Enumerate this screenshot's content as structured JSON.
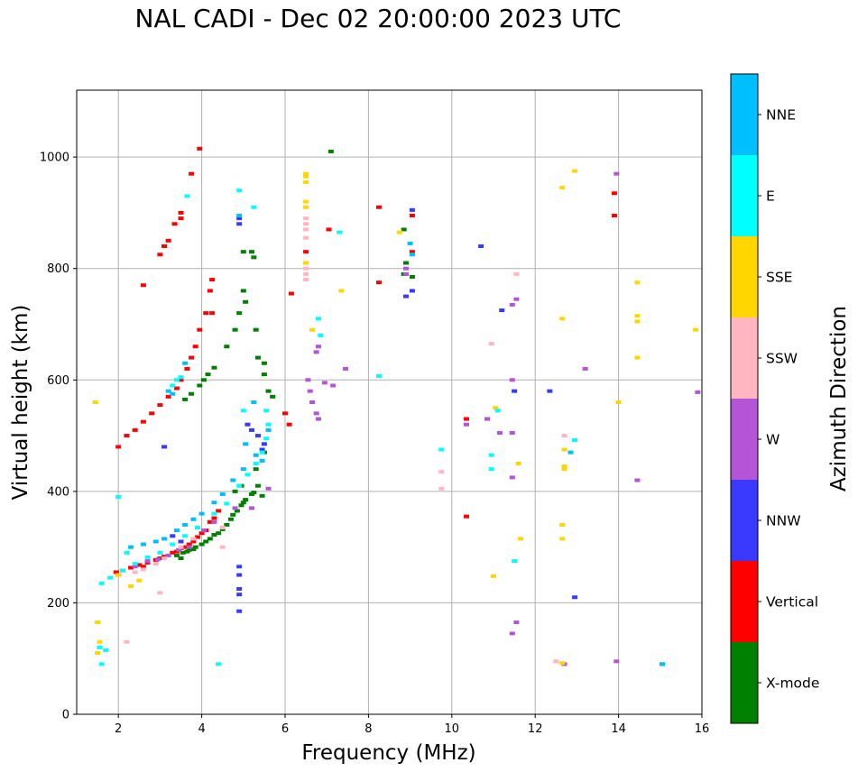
{
  "chart_data": {
    "type": "scatter",
    "title": "NAL CADI - Dec 02 20:00:00 2023 UTC",
    "xlabel": "Frequency (MHz)",
    "ylabel": "Virtual height (km)",
    "xlim": [
      1,
      16
    ],
    "ylim": [
      0,
      1120
    ],
    "xticks": [
      2,
      4,
      6,
      8,
      10,
      12,
      14,
      16
    ],
    "yticks": [
      0,
      200,
      400,
      600,
      800,
      1000
    ],
    "grid": true,
    "colorbar": {
      "label": "Azimuth Direction",
      "categories": [
        {
          "name": "X-mode",
          "color": "#008000"
        },
        {
          "name": "Vertical",
          "color": "#ff0000"
        },
        {
          "name": "NNW",
          "color": "#3a3aff"
        },
        {
          "name": "W",
          "color": "#b455d8"
        },
        {
          "name": "SSW",
          "color": "#ffb6c1"
        },
        {
          "name": "SSE",
          "color": "#ffd700"
        },
        {
          "name": "E",
          "color": "#00ffff"
        },
        {
          "name": "NNE",
          "color": "#00bfff"
        }
      ]
    },
    "series": [
      {
        "name": "X-mode",
        "points": [
          [
            3.4,
            285
          ],
          [
            3.55,
            290
          ],
          [
            3.7,
            295
          ],
          [
            3.85,
            300
          ],
          [
            4.0,
            305
          ],
          [
            4.2,
            315
          ],
          [
            4.4,
            325
          ],
          [
            4.6,
            340
          ],
          [
            4.7,
            350
          ],
          [
            4.85,
            365
          ],
          [
            4.95,
            375
          ],
          [
            5.05,
            385
          ],
          [
            5.2,
            395
          ],
          [
            5.35,
            410
          ],
          [
            3.5,
            280
          ],
          [
            3.8,
            296
          ],
          [
            4.1,
            310
          ],
          [
            4.5,
            332
          ],
          [
            4.75,
            358
          ],
          [
            5.0,
            380
          ],
          [
            5.25,
            398
          ],
          [
            5.45,
            392
          ],
          [
            4.3,
            322
          ],
          [
            3.65,
            292
          ],
          [
            4.05,
            600
          ],
          [
            4.15,
            610
          ],
          [
            3.95,
            590
          ],
          [
            3.75,
            575
          ],
          [
            3.6,
            565
          ],
          [
            4.3,
            622
          ],
          [
            4.6,
            660
          ],
          [
            4.8,
            690
          ],
          [
            4.9,
            720
          ],
          [
            5.05,
            740
          ],
          [
            5.0,
            830
          ],
          [
            5.2,
            830
          ],
          [
            5.25,
            820
          ],
          [
            5.0,
            760
          ],
          [
            5.3,
            690
          ],
          [
            5.35,
            640
          ],
          [
            5.5,
            630
          ],
          [
            5.5,
            610
          ],
          [
            5.6,
            580
          ],
          [
            5.7,
            570
          ],
          [
            8.85,
            870
          ],
          [
            8.9,
            810
          ],
          [
            8.85,
            790
          ],
          [
            9.05,
            785
          ],
          [
            7.1,
            1010
          ],
          [
            5.5,
            470
          ],
          [
            5.3,
            440
          ],
          [
            4.95,
            410
          ],
          [
            4.8,
            400
          ]
        ]
      },
      {
        "name": "Vertical",
        "points": [
          [
            1.95,
            255
          ],
          [
            2.1,
            258
          ],
          [
            2.3,
            263
          ],
          [
            2.5,
            268
          ],
          [
            2.7,
            272
          ],
          [
            2.9,
            277
          ],
          [
            3.1,
            283
          ],
          [
            3.3,
            290
          ],
          [
            3.5,
            298
          ],
          [
            3.7,
            305
          ],
          [
            3.9,
            318
          ],
          [
            4.0,
            325
          ],
          [
            4.1,
            330
          ],
          [
            4.2,
            345
          ],
          [
            2.0,
            250
          ],
          [
            2.6,
            265
          ],
          [
            3.0,
            280
          ],
          [
            3.4,
            292
          ],
          [
            3.8,
            310
          ],
          [
            4.3,
            352
          ],
          [
            4.4,
            365
          ],
          [
            3.6,
            300
          ],
          [
            2.0,
            480
          ],
          [
            2.2,
            500
          ],
          [
            2.4,
            510
          ],
          [
            2.6,
            525
          ],
          [
            2.8,
            540
          ],
          [
            3.0,
            555
          ],
          [
            3.2,
            570
          ],
          [
            3.4,
            585
          ],
          [
            3.5,
            600
          ],
          [
            3.65,
            620
          ],
          [
            3.75,
            640
          ],
          [
            3.85,
            660
          ],
          [
            3.95,
            690
          ],
          [
            4.1,
            720
          ],
          [
            4.25,
            720
          ],
          [
            3.0,
            825
          ],
          [
            3.1,
            840
          ],
          [
            3.2,
            850
          ],
          [
            3.35,
            880
          ],
          [
            3.5,
            890
          ],
          [
            3.5,
            900
          ],
          [
            3.75,
            970
          ],
          [
            3.95,
            1015
          ],
          [
            4.25,
            780
          ],
          [
            4.2,
            760
          ],
          [
            2.6,
            770
          ],
          [
            6.1,
            520
          ],
          [
            6.0,
            540
          ],
          [
            6.15,
            755
          ],
          [
            6.5,
            830
          ],
          [
            7.05,
            870
          ],
          [
            8.25,
            910
          ],
          [
            8.25,
            775
          ],
          [
            9.05,
            895
          ],
          [
            9.05,
            830
          ],
          [
            10.35,
            530
          ],
          [
            10.35,
            355
          ],
          [
            10.85,
            530
          ],
          [
            13.9,
            935
          ],
          [
            13.9,
            895
          ]
        ]
      },
      {
        "name": "NNW",
        "points": [
          [
            4.9,
            225
          ],
          [
            4.9,
            215
          ],
          [
            4.9,
            250
          ],
          [
            4.9,
            265
          ],
          [
            4.9,
            185
          ],
          [
            4.9,
            890
          ],
          [
            4.9,
            880
          ],
          [
            5.1,
            520
          ],
          [
            5.2,
            510
          ],
          [
            5.35,
            500
          ],
          [
            5.5,
            485
          ],
          [
            5.45,
            475
          ],
          [
            9.05,
            905
          ],
          [
            9.05,
            760
          ],
          [
            8.9,
            750
          ],
          [
            10.7,
            840
          ],
          [
            11.2,
            725
          ],
          [
            11.5,
            580
          ],
          [
            12.35,
            580
          ],
          [
            12.95,
            210
          ],
          [
            15.05,
            90
          ],
          [
            3.1,
            480
          ],
          [
            3.3,
            320
          ],
          [
            3.5,
            310
          ]
        ]
      },
      {
        "name": "W",
        "points": [
          [
            2.4,
            265
          ],
          [
            2.7,
            275
          ],
          [
            2.95,
            278
          ],
          [
            3.2,
            285
          ],
          [
            3.45,
            295
          ],
          [
            3.7,
            300
          ],
          [
            4.05,
            330
          ],
          [
            4.3,
            345
          ],
          [
            4.8,
            370
          ],
          [
            5.2,
            370
          ],
          [
            5.6,
            405
          ],
          [
            6.55,
            600
          ],
          [
            6.6,
            580
          ],
          [
            6.65,
            560
          ],
          [
            6.75,
            540
          ],
          [
            6.8,
            530
          ],
          [
            6.95,
            595
          ],
          [
            7.15,
            590
          ],
          [
            7.45,
            620
          ],
          [
            6.75,
            650
          ],
          [
            6.8,
            660
          ],
          [
            8.9,
            800
          ],
          [
            8.9,
            790
          ],
          [
            10.35,
            520
          ],
          [
            10.85,
            530
          ],
          [
            11.15,
            505
          ],
          [
            11.45,
            505
          ],
          [
            11.45,
            425
          ],
          [
            11.45,
            600
          ],
          [
            11.45,
            735
          ],
          [
            11.55,
            745
          ],
          [
            11.55,
            165
          ],
          [
            11.45,
            145
          ],
          [
            13.2,
            620
          ],
          [
            13.95,
            970
          ],
          [
            14.45,
            420
          ],
          [
            13.95,
            95
          ],
          [
            15.9,
            578
          ],
          [
            12.7,
            90
          ]
        ]
      },
      {
        "name": "SSW",
        "points": [
          [
            6.5,
            790
          ],
          [
            6.5,
            800
          ],
          [
            6.5,
            810
          ],
          [
            6.5,
            780
          ],
          [
            6.5,
            855
          ],
          [
            6.5,
            870
          ],
          [
            6.5,
            880
          ],
          [
            6.5,
            890
          ],
          [
            2.4,
            255
          ],
          [
            2.6,
            260
          ],
          [
            2.9,
            270
          ],
          [
            3.1,
            280
          ],
          [
            3.5,
            300
          ],
          [
            3.8,
            315
          ],
          [
            4.5,
            300
          ],
          [
            4.5,
            335
          ],
          [
            9.75,
            405
          ],
          [
            9.75,
            435
          ],
          [
            10.95,
            665
          ],
          [
            11.55,
            790
          ],
          [
            12.7,
            500
          ],
          [
            12.5,
            95
          ],
          [
            2.2,
            130
          ],
          [
            3.0,
            218
          ]
        ]
      },
      {
        "name": "SSE",
        "points": [
          [
            6.5,
            955
          ],
          [
            6.5,
            965
          ],
          [
            6.5,
            970
          ],
          [
            6.5,
            910
          ],
          [
            6.5,
            920
          ],
          [
            6.5,
            810
          ],
          [
            6.65,
            690
          ],
          [
            7.35,
            760
          ],
          [
            8.75,
            865
          ],
          [
            12.65,
            945
          ],
          [
            12.95,
            975
          ],
          [
            12.65,
            710
          ],
          [
            12.7,
            475
          ],
          [
            12.7,
            440
          ],
          [
            12.7,
            445
          ],
          [
            12.65,
            340
          ],
          [
            12.65,
            315
          ],
          [
            12.65,
            92
          ],
          [
            14.45,
            775
          ],
          [
            14.45,
            715
          ],
          [
            14.45,
            705
          ],
          [
            14.45,
            640
          ],
          [
            14.0,
            560
          ],
          [
            15.85,
            690
          ],
          [
            11.05,
            550
          ],
          [
            11.6,
            450
          ],
          [
            11.65,
            315
          ],
          [
            11.0,
            248
          ],
          [
            1.5,
            165
          ],
          [
            1.55,
            130
          ],
          [
            1.5,
            110
          ],
          [
            2.0,
            250
          ],
          [
            2.3,
            230
          ],
          [
            2.5,
            240
          ],
          [
            1.45,
            560
          ]
        ]
      },
      {
        "name": "E",
        "points": [
          [
            1.6,
            235
          ],
          [
            1.8,
            245
          ],
          [
            2.1,
            258
          ],
          [
            2.4,
            270
          ],
          [
            2.7,
            282
          ],
          [
            3.0,
            290
          ],
          [
            3.3,
            305
          ],
          [
            3.6,
            320
          ],
          [
            3.9,
            335
          ],
          [
            4.3,
            360
          ],
          [
            4.6,
            378
          ],
          [
            4.9,
            410
          ],
          [
            5.1,
            430
          ],
          [
            5.3,
            450
          ],
          [
            5.45,
            470
          ],
          [
            5.55,
            495
          ],
          [
            5.6,
            520
          ],
          [
            5.55,
            545
          ],
          [
            2.0,
            390
          ],
          [
            3.3,
            590
          ],
          [
            3.4,
            600
          ],
          [
            3.5,
            605
          ],
          [
            3.65,
            930
          ],
          [
            4.9,
            940
          ],
          [
            5.25,
            910
          ],
          [
            5.0,
            545
          ],
          [
            4.4,
            90
          ],
          [
            6.8,
            710
          ],
          [
            6.85,
            680
          ],
          [
            7.3,
            865
          ],
          [
            10.95,
            465
          ],
          [
            10.95,
            440
          ],
          [
            11.1,
            545
          ],
          [
            11.5,
            275
          ],
          [
            12.95,
            492
          ],
          [
            8.25,
            607
          ],
          [
            9.75,
            475
          ],
          [
            1.6,
            90
          ],
          [
            1.55,
            120
          ],
          [
            1.7,
            115
          ],
          [
            2.2,
            290
          ]
        ]
      },
      {
        "name": "NNE",
        "points": [
          [
            2.3,
            300
          ],
          [
            2.6,
            305
          ],
          [
            2.9,
            310
          ],
          [
            3.1,
            315
          ],
          [
            3.4,
            330
          ],
          [
            3.6,
            340
          ],
          [
            3.8,
            350
          ],
          [
            4.0,
            360
          ],
          [
            4.3,
            380
          ],
          [
            4.5,
            395
          ],
          [
            4.75,
            420
          ],
          [
            5.0,
            440
          ],
          [
            5.3,
            465
          ],
          [
            5.45,
            455
          ],
          [
            5.6,
            510
          ],
          [
            3.2,
            580
          ],
          [
            3.3,
            575
          ],
          [
            3.6,
            630
          ],
          [
            4.9,
            895
          ],
          [
            9.0,
            845
          ],
          [
            9.05,
            825
          ],
          [
            12.85,
            470
          ],
          [
            15.05,
            90
          ],
          [
            5.05,
            485
          ],
          [
            5.25,
            560
          ]
        ]
      }
    ]
  }
}
